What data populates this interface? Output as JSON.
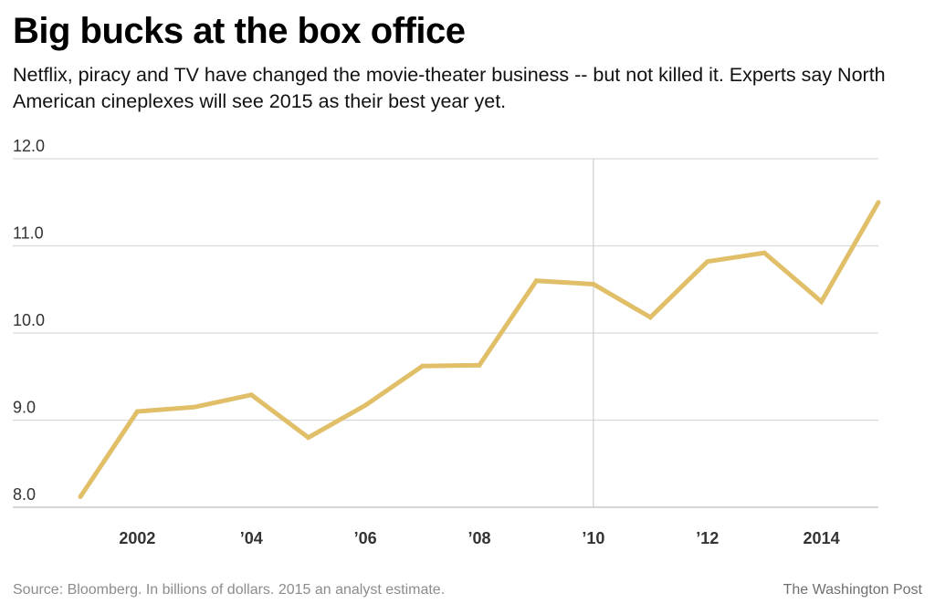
{
  "header": {
    "title": "Big bucks at the box office",
    "subtitle": "Netflix, piracy and TV have changed the movie-theater business -- but not killed it. Experts say North American cineplexes will see 2015 as their best year yet."
  },
  "footer": {
    "source": "Source: Bloomberg. In billions of dollars. 2015 an analyst estimate.",
    "credit": "The Washington Post"
  },
  "chart_data": {
    "type": "line",
    "title": "Big bucks at the box office",
    "xlabel": "",
    "ylabel": "",
    "ylim": [
      8.0,
      12.0
    ],
    "xlim": [
      2001,
      2015
    ],
    "yticks": [
      {
        "value": 12,
        "label": "12.0"
      },
      {
        "value": 11,
        "label": "11.0"
      },
      {
        "value": 10,
        "label": "10.0"
      },
      {
        "value": 9,
        "label": "9.0"
      },
      {
        "value": 8,
        "label": "8.0"
      }
    ],
    "xticks": [
      {
        "value": 2002,
        "label": "2002"
      },
      {
        "value": 2004,
        "label": "’04"
      },
      {
        "value": 2006,
        "label": "’06"
      },
      {
        "value": 2008,
        "label": "’08"
      },
      {
        "value": 2010,
        "label": "’10"
      },
      {
        "value": 2012,
        "label": "’12"
      },
      {
        "value": 2014,
        "label": "2014"
      }
    ],
    "reference_line_x": 2010,
    "grid": true,
    "line_color": "#e0bf68",
    "series": [
      {
        "name": "",
        "x": [
          2001,
          2002,
          2003,
          2004,
          2005,
          2006,
          2007,
          2008,
          2009,
          2010,
          2011,
          2012,
          2013,
          2014,
          2015
        ],
        "values": [
          8.12,
          9.1,
          9.15,
          9.29,
          8.8,
          9.17,
          9.62,
          9.63,
          10.6,
          10.56,
          10.18,
          10.82,
          10.92,
          10.36,
          11.5
        ]
      }
    ]
  }
}
